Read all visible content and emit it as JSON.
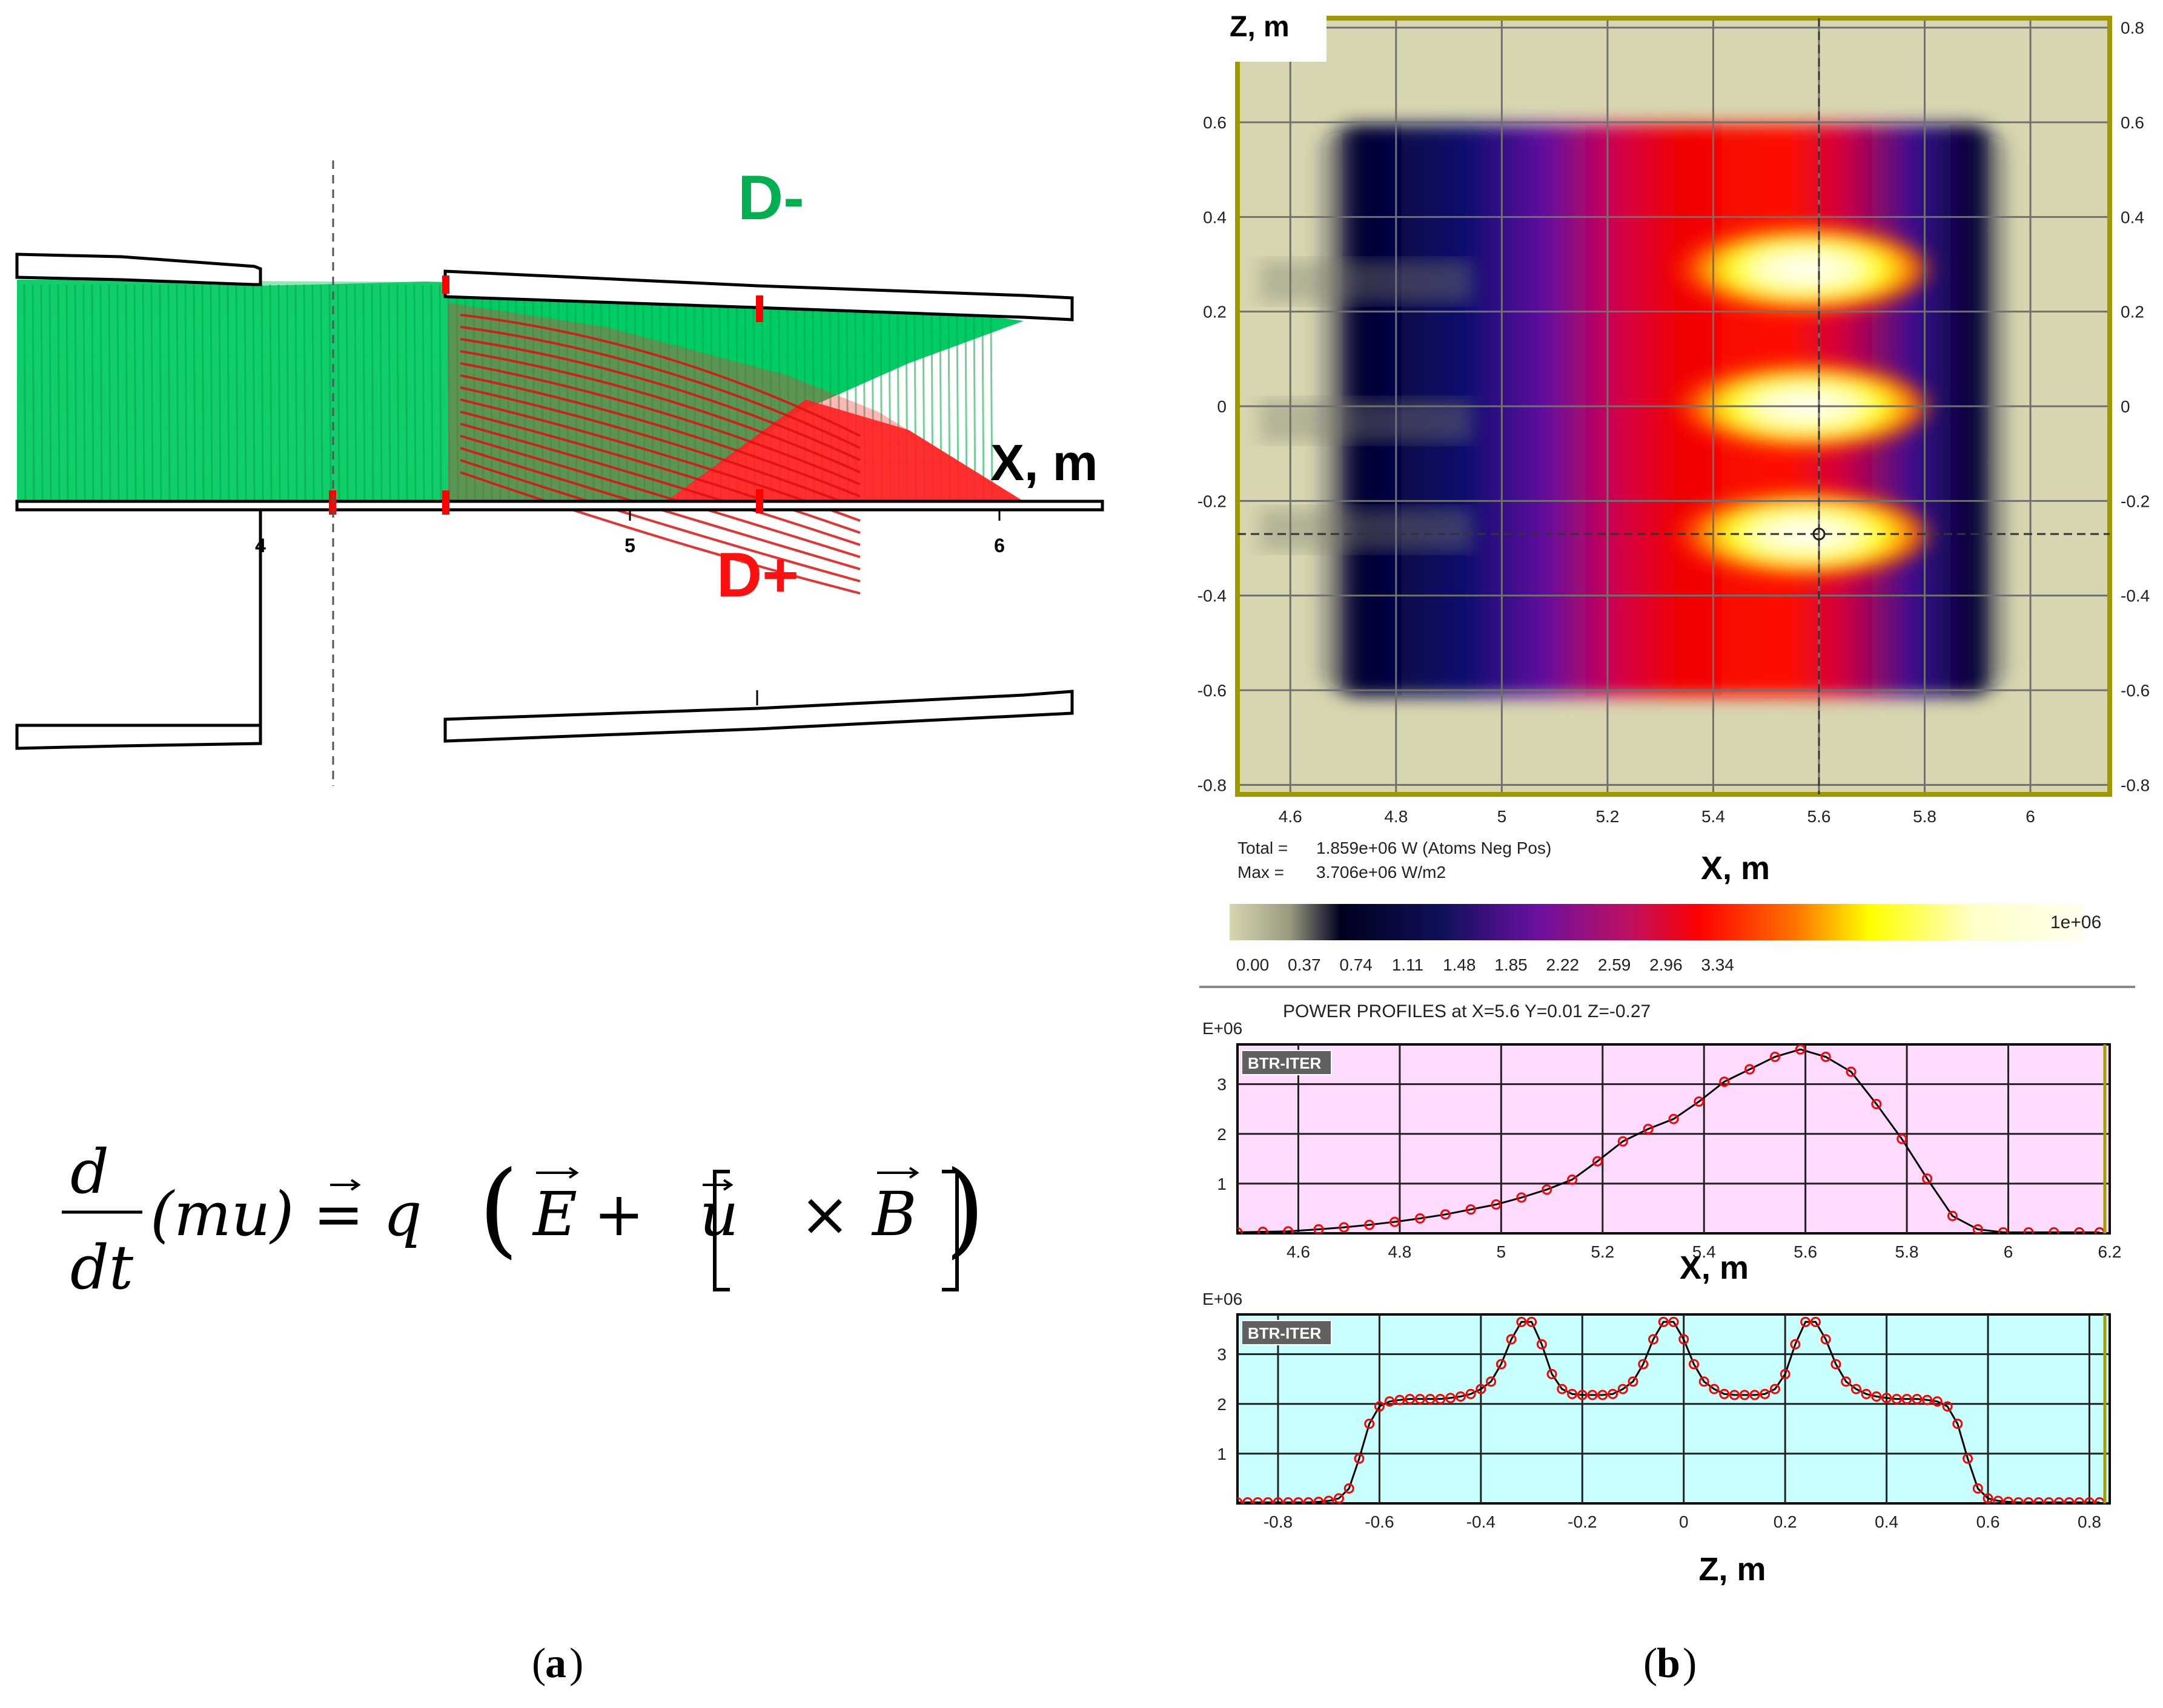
{
  "panel_a": {
    "tag_open": "(",
    "tag_letter": "a",
    "tag_close": ")",
    "label_dminus": "D-",
    "label_dplus": "D+",
    "axis_label": "X, m",
    "ticks": [
      "4",
      "5",
      "6"
    ],
    "equation": "d/dt (m u) = q ( E + [ u × B ] )",
    "eq": {
      "d": "d",
      "dt": "dt",
      "lhs": "(mu) = q",
      "e": "E",
      "plus": "+",
      "u": "u",
      "times": "×",
      "b": "B"
    },
    "colors": {
      "d_minus": "#00c050",
      "d_plus": "#ff1010"
    }
  },
  "panel_b": {
    "tag_open": "(",
    "tag_letter": "b",
    "tag_close": ")",
    "chart_data": [
      {
        "type": "heatmap",
        "title": "",
        "xlabel": "X, m",
        "ylabel": "Z, m",
        "xlim": [
          4.5,
          6.15
        ],
        "ylim": [
          -0.82,
          0.82
        ],
        "x_ticks": [
          "4.6",
          "4.8",
          "5",
          "5.2",
          "5.4",
          "5.6",
          "5.8",
          "6"
        ],
        "y_ticks": [
          "0.8",
          "0.6",
          "0.4",
          "0.2",
          "0",
          "-0.2",
          "-0.4",
          "-0.6",
          "-0.8"
        ],
        "y_ticks_left": [
          "0.6",
          "0.4",
          "0.2",
          "0",
          "-0.2",
          "-0.4",
          "-0.6",
          "-0.8"
        ],
        "total_label": "Total =",
        "total_value": "1.859e+06 W (Atoms Neg Pos)",
        "max_label": "Max =",
        "max_value": "3.706e+06 W/m2",
        "hot_spots_z": [
          0.29,
          0.0,
          -0.27
        ],
        "crosshair": {
          "x": 5.6,
          "z": -0.27
        },
        "colorbar": {
          "scale_label": "1e+06",
          "ticks": [
            "0.00",
            "0.37",
            "0.74",
            "1.11",
            "1.48",
            "1.85",
            "2.22",
            "2.59",
            "2.96",
            "3.34"
          ],
          "colors": [
            "#d8d6b0",
            "#000020",
            "#10105a",
            "#6a10a0",
            "#c01060",
            "#ff0000",
            "#ff7000",
            "#ffff00",
            "#ffffc8",
            "#ffffe8"
          ]
        }
      },
      {
        "type": "line",
        "title": "POWER PROFILES  at  X=5.6 Y=0.01 Z=-0.27",
        "scale_label": "E+06",
        "badge": "BTR-ITER",
        "xlabel": "X, m",
        "ylabel": "",
        "xlim": [
          4.48,
          6.2
        ],
        "ylim": [
          0,
          3.8
        ],
        "x_ticks": [
          "4.6",
          "4.8",
          "5",
          "5.2",
          "5.4",
          "5.6",
          "5.8",
          "6",
          "6.2"
        ],
        "y_ticks": [
          "3",
          "2",
          "1"
        ],
        "x": [
          4.48,
          4.53,
          4.58,
          4.64,
          4.69,
          4.74,
          4.79,
          4.84,
          4.89,
          4.94,
          4.99,
          5.04,
          5.09,
          5.14,
          5.19,
          5.24,
          5.29,
          5.34,
          5.39,
          5.44,
          5.49,
          5.54,
          5.59,
          5.64,
          5.69,
          5.74,
          5.79,
          5.84,
          5.89,
          5.94,
          5.99,
          6.04,
          6.09,
          6.14,
          6.18
        ],
        "y": [
          0.02,
          0.03,
          0.04,
          0.08,
          0.12,
          0.17,
          0.23,
          0.3,
          0.38,
          0.48,
          0.58,
          0.72,
          0.88,
          1.08,
          1.45,
          1.85,
          2.1,
          2.3,
          2.65,
          3.05,
          3.3,
          3.55,
          3.7,
          3.55,
          3.25,
          2.6,
          1.9,
          1.1,
          0.35,
          0.08,
          0.02,
          0.02,
          0.02,
          0.02,
          0.02
        ],
        "colors": {
          "background": "#ffdcff",
          "line": "#000000",
          "marker": "#ff0000"
        }
      },
      {
        "type": "line",
        "title": "",
        "scale_label": "E+06",
        "badge": "BTR-ITER",
        "xlabel": "Z, m",
        "ylabel": "",
        "xlim": [
          -0.88,
          0.84
        ],
        "ylim": [
          0,
          3.8
        ],
        "x_ticks": [
          "-0.8",
          "-0.6",
          "-0.4",
          "-0.2",
          "0",
          "0.2",
          "0.4",
          "0.6",
          "0.8"
        ],
        "y_ticks": [
          "3",
          "2",
          "1"
        ],
        "x": [
          -0.88,
          -0.86,
          -0.84,
          -0.82,
          -0.8,
          -0.78,
          -0.76,
          -0.74,
          -0.72,
          -0.7,
          -0.68,
          -0.66,
          -0.64,
          -0.62,
          -0.6,
          -0.58,
          -0.56,
          -0.54,
          -0.52,
          -0.5,
          -0.48,
          -0.46,
          -0.44,
          -0.42,
          -0.4,
          -0.38,
          -0.36,
          -0.34,
          -0.32,
          -0.3,
          -0.28,
          -0.26,
          -0.24,
          -0.22,
          -0.2,
          -0.18,
          -0.16,
          -0.14,
          -0.12,
          -0.1,
          -0.08,
          -0.06,
          -0.04,
          -0.02,
          0.0,
          0.02,
          0.04,
          0.06,
          0.08,
          0.1,
          0.12,
          0.14,
          0.16,
          0.18,
          0.2,
          0.22,
          0.24,
          0.26,
          0.28,
          0.3,
          0.32,
          0.34,
          0.36,
          0.38,
          0.4,
          0.42,
          0.44,
          0.46,
          0.48,
          0.5,
          0.52,
          0.54,
          0.56,
          0.58,
          0.6,
          0.62,
          0.64,
          0.66,
          0.68,
          0.7,
          0.72,
          0.74,
          0.76,
          0.78,
          0.8,
          0.82
        ],
        "y": [
          0.02,
          0.02,
          0.02,
          0.02,
          0.02,
          0.02,
          0.02,
          0.02,
          0.03,
          0.05,
          0.1,
          0.3,
          0.9,
          1.6,
          1.95,
          2.05,
          2.08,
          2.1,
          2.1,
          2.1,
          2.1,
          2.12,
          2.15,
          2.2,
          2.3,
          2.45,
          2.8,
          3.3,
          3.65,
          3.65,
          3.2,
          2.6,
          2.3,
          2.2,
          2.18,
          2.18,
          2.18,
          2.2,
          2.3,
          2.45,
          2.8,
          3.3,
          3.65,
          3.65,
          3.3,
          2.8,
          2.45,
          2.3,
          2.2,
          2.18,
          2.18,
          2.18,
          2.2,
          2.3,
          2.6,
          3.2,
          3.65,
          3.65,
          3.3,
          2.8,
          2.45,
          2.3,
          2.2,
          2.15,
          2.12,
          2.1,
          2.1,
          2.1,
          2.08,
          2.05,
          1.95,
          1.6,
          0.9,
          0.3,
          0.1,
          0.05,
          0.03,
          0.02,
          0.02,
          0.02,
          0.02,
          0.02,
          0.02,
          0.02,
          0.02,
          0.02
        ],
        "colors": {
          "background": "#c8ffff",
          "line": "#000000",
          "marker": "#ff0000"
        }
      }
    ]
  }
}
